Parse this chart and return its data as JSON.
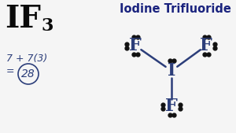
{
  "bg_color": "#f5f5f5",
  "title_color": "#1a237e",
  "dot_color": "#111111",
  "bond_color": "#2c3e7a",
  "formula_color": "#0a0a0a",
  "calc_color": "#2c3e7a",
  "circle_color": "#2c3e7a",
  "title_text": "Iodine Trifluoride",
  "formula_IF": "IF",
  "formula_sub": "3",
  "calc_line1": "7 + 7(3)",
  "calc_line2": "= ",
  "calc_circled": "28",
  "center_atom": "I",
  "f_left": "F",
  "f_right": "F",
  "f_bottom": "F",
  "dot_size": 3.5,
  "figw": 3.0,
  "figh": 1.69,
  "dpi": 100
}
